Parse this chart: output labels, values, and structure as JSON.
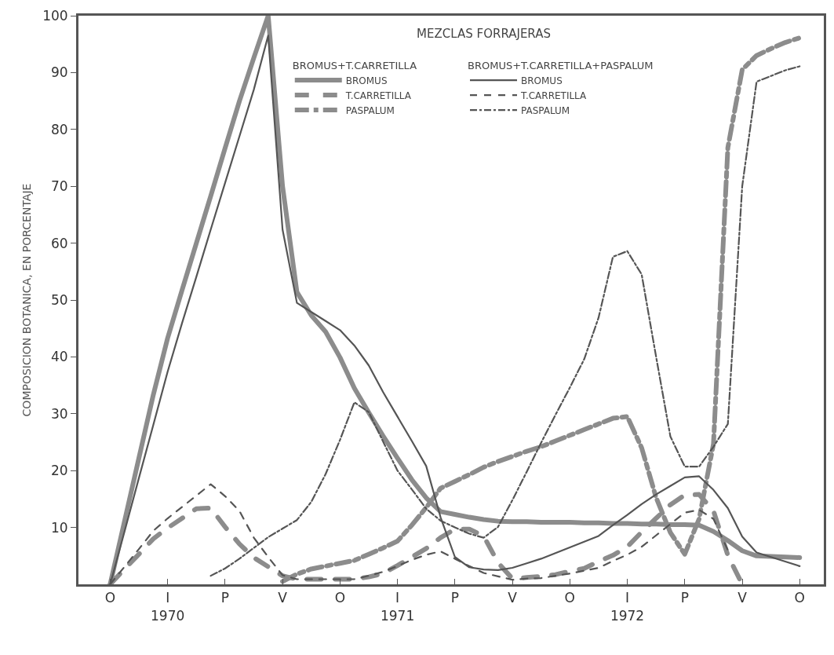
{
  "chart_data": {
    "type": "line",
    "title": "MEZCLAS FORRAJERAS",
    "ylabel": "COMPOSICION BOTANICA, EN PORCENTAJE",
    "legend_title": [
      "BROMUS+T.CARRETILLA",
      "BROMUS+T.CARRETILLA+PASPALUM"
    ],
    "categories": [
      "O",
      null,
      null,
      null,
      "I\n1970",
      null,
      null,
      null,
      "P",
      null,
      null,
      null,
      "V",
      null,
      null,
      null,
      "O",
      null,
      null,
      null,
      "I\n1971",
      null,
      null,
      null,
      "P",
      null,
      null,
      null,
      "V",
      null,
      null,
      null,
      "O",
      null,
      null,
      null,
      "I\n1972",
      null,
      null,
      null,
      "P",
      null,
      null,
      null,
      "V",
      null,
      null,
      null,
      "O"
    ],
    "ylim": [
      0,
      100
    ],
    "yticks": [
      10,
      20,
      30,
      40,
      50,
      60,
      70,
      80,
      90,
      100
    ],
    "legend": "top",
    "marker": "none",
    "series": [
      {
        "name": "BROMUS",
        "color": "#8c8c8c",
        "line_style": "solid",
        "values": [
          0.0,
          11.1,
          22.2,
          33.3,
          43.3,
          51.7,
          60.0,
          68.3,
          76.7,
          85.0,
          92.6,
          100,
          70.0,
          51.4,
          47.3,
          44.4,
          39.9,
          34.5,
          30.2,
          26.1,
          22.2,
          18.4,
          15.2,
          12.8,
          12.3,
          11.8,
          11.4,
          11.1,
          11.0,
          11.0,
          10.9,
          10.9,
          10.9,
          10.8,
          10.8,
          10.7,
          10.7,
          10.6,
          10.6,
          10.5,
          10.5,
          10.4,
          9.3,
          7.7,
          5.9,
          5.0,
          4.9,
          4.8,
          4.7
        ]
      },
      {
        "name": "T.CARRETILLA",
        "color": "#8c8c8c",
        "line_style": "dashed",
        "values": [
          0,
          2.7,
          5.3,
          8.0,
          9.9,
          11.6,
          13.3,
          13.4,
          10.1,
          7.1,
          4.7,
          3.1,
          1.5,
          0.9,
          0.9,
          0.9,
          0.9,
          0.9,
          1.3,
          1.9,
          3.3,
          4.8,
          6.3,
          8.2,
          9.7,
          9.7,
          8.5,
          3.8,
          1.0,
          1.2,
          1.4,
          1.7,
          2.3,
          2.8,
          4.0,
          5.1,
          6.6,
          9.2,
          11.6,
          14.0,
          15.7,
          15.8,
          12.9,
          5.1,
          0,
          null,
          null,
          null,
          null
        ]
      },
      {
        "name": "PASPALUM",
        "color": "#8c8c8c",
        "line_style": "dashdot",
        "values": [
          null,
          null,
          null,
          null,
          null,
          null,
          null,
          null,
          null,
          null,
          null,
          null,
          0.5,
          1.8,
          2.7,
          3.2,
          3.7,
          4.2,
          5.3,
          6.4,
          7.6,
          10.4,
          13.5,
          16.9,
          18.1,
          19.3,
          20.6,
          21.6,
          22.5,
          23.4,
          24.2,
          25.2,
          26.2,
          27.2,
          28.2,
          29.2,
          29.5,
          24.0,
          15.3,
          9.1,
          5.3,
          11.5,
          24.7,
          76.8,
          90.5,
          93.0,
          94.2,
          95.3,
          96.1
        ]
      },
      {
        "name": "BROMUS",
        "color": "#555555",
        "line_style": "solid",
        "values": [
          0.0,
          9.3,
          18.7,
          28.0,
          37.4,
          45.9,
          54.1,
          62.4,
          70.6,
          78.8,
          87.0,
          96.5,
          62.4,
          49.5,
          47.9,
          46.3,
          44.7,
          42.0,
          38.5,
          33.8,
          29.5,
          25.2,
          20.8,
          11.8,
          4.8,
          3.0,
          2.6,
          2.5,
          2.9,
          3.7,
          4.5,
          5.5,
          6.5,
          7.5,
          8.5,
          10.4,
          12.2,
          14.1,
          15.8,
          17.3,
          18.8,
          19.0,
          16.6,
          13.4,
          8.4,
          5.6,
          4.8,
          4.0,
          3.2
        ]
      },
      {
        "name": "T.CARRETILLA",
        "color": "#555555",
        "line_style": "dashed",
        "values": [
          0.0,
          3.1,
          6.2,
          9.4,
          11.6,
          13.6,
          15.6,
          17.6,
          15.5,
          12.9,
          8.2,
          4.8,
          1.6,
          0.9,
          0.9,
          0.9,
          0.9,
          0.9,
          1.5,
          2.2,
          3.2,
          4.3,
          5.2,
          5.8,
          4.5,
          3.2,
          2.0,
          1.4,
          0.8,
          1.0,
          1.1,
          1.5,
          1.9,
          2.4,
          2.9,
          4.1,
          5.2,
          6.6,
          8.6,
          10.6,
          12.6,
          13.1,
          11.5,
          6.0,
          null,
          null,
          null,
          null,
          null
        ]
      },
      {
        "name": "PASPALUM",
        "color": "#555555",
        "line_style": "dashdot",
        "values": [
          null,
          null,
          null,
          null,
          null,
          null,
          null,
          1.5,
          2.8,
          4.5,
          6.4,
          8.3,
          9.8,
          11.3,
          14.5,
          19.4,
          25.4,
          32.0,
          30.3,
          25.1,
          20.0,
          16.7,
          13.3,
          11.2,
          10.0,
          8.9,
          8.2,
          10.1,
          14.8,
          19.8,
          24.9,
          29.8,
          34.6,
          39.6,
          46.9,
          57.6,
          58.6,
          54.5,
          40.1,
          26.0,
          20.7,
          20.7,
          24.2,
          28.2,
          70.0,
          88.4,
          89.4,
          90.4,
          91.1
        ]
      }
    ]
  }
}
